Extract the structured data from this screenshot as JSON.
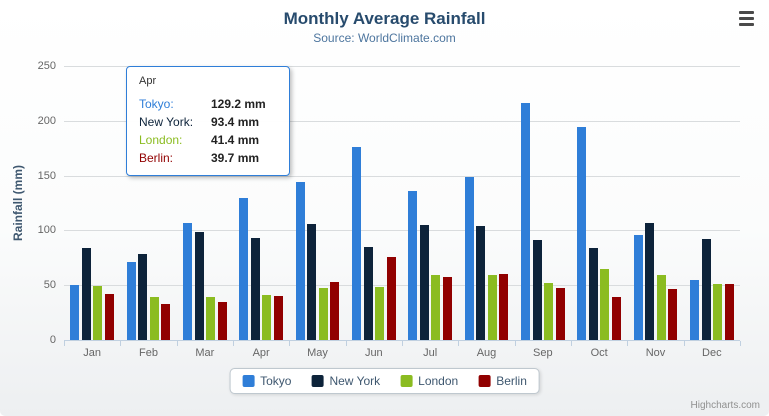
{
  "header": {
    "title": "Monthly Average Rainfall",
    "subtitle": "Source: WorldClimate.com"
  },
  "credit": "Highcharts.com",
  "tooltip": {
    "header": "Apr",
    "border_color": "#2f7ed8",
    "rows": [
      {
        "label": "Tokyo:",
        "value": "129.2 mm"
      },
      {
        "label": "New York:",
        "value": "93.4 mm"
      },
      {
        "label": "London:",
        "value": "41.4 mm"
      },
      {
        "label": "Berlin:",
        "value": "39.7 mm"
      }
    ]
  },
  "chart_data": {
    "type": "bar",
    "title": "Monthly Average Rainfall",
    "subtitle": "Source: WorldClimate.com",
    "xlabel": "",
    "ylabel": "Rainfall (mm)",
    "ylim": [
      0,
      250
    ],
    "yticks": [
      0,
      50,
      100,
      150,
      200,
      250
    ],
    "grid": true,
    "legend_position": "bottom",
    "categories": [
      "Jan",
      "Feb",
      "Mar",
      "Apr",
      "May",
      "Jun",
      "Jul",
      "Aug",
      "Sep",
      "Oct",
      "Nov",
      "Dec"
    ],
    "series": [
      {
        "name": "Tokyo",
        "color": "#2f7ed8",
        "values": [
          49.9,
          71.5,
          106.4,
          129.2,
          144.0,
          176.0,
          135.6,
          148.5,
          216.4,
          194.1,
          95.6,
          54.4
        ]
      },
      {
        "name": "New York",
        "color": "#0d233a",
        "values": [
          83.6,
          78.8,
          98.5,
          93.4,
          106.0,
          84.5,
          105.0,
          104.3,
          91.2,
          83.5,
          106.6,
          92.3
        ]
      },
      {
        "name": "London",
        "color": "#8bbc21",
        "values": [
          48.9,
          38.8,
          39.3,
          41.4,
          47.0,
          48.3,
          59.0,
          59.6,
          52.4,
          65.2,
          59.3,
          51.2
        ]
      },
      {
        "name": "Berlin",
        "color": "#910000",
        "values": [
          42.4,
          33.2,
          34.5,
          39.7,
          52.6,
          75.5,
          57.4,
          60.4,
          47.6,
          39.1,
          46.8,
          51.1
        ]
      }
    ]
  }
}
